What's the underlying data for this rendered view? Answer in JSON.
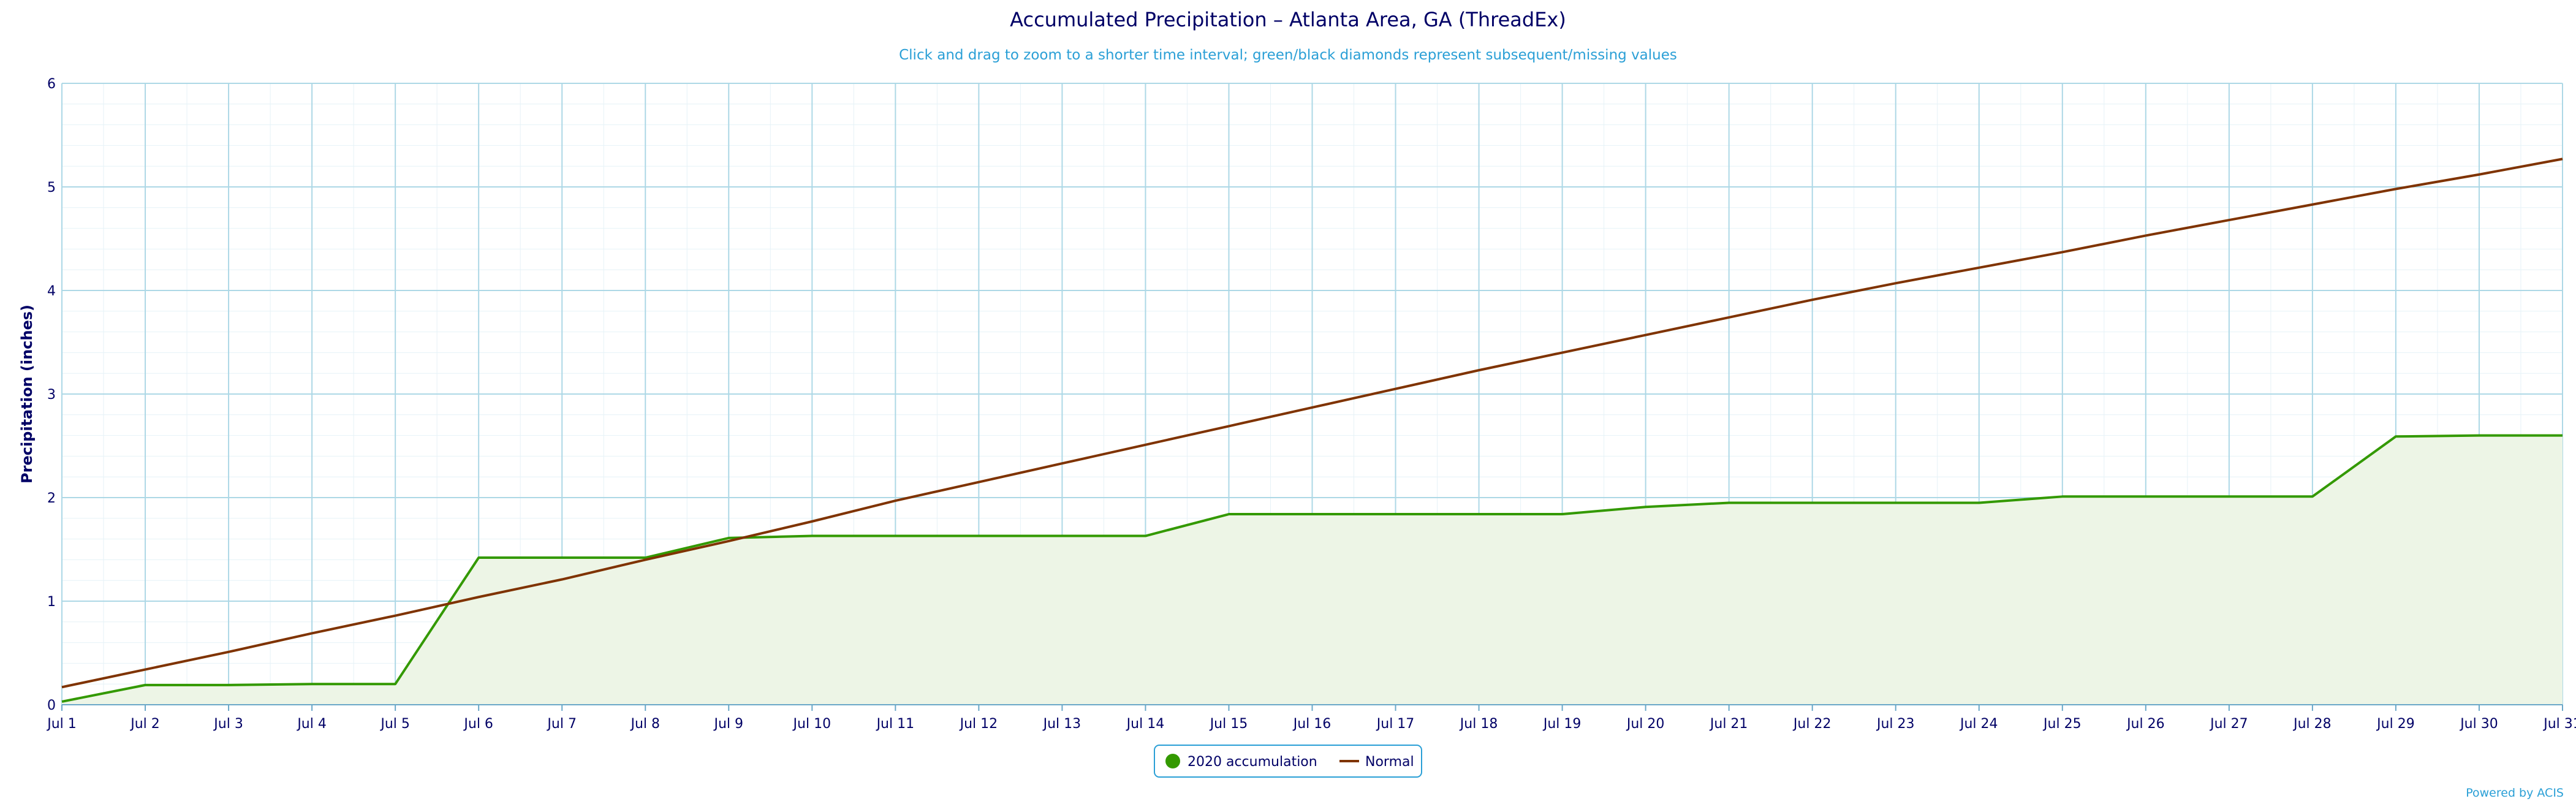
{
  "chart_data": {
    "type": "line",
    "title": "Accumulated Precipitation – Atlanta Area, GA (ThreadEx)",
    "subtitle": "Click and drag to zoom to a shorter time interval; green/black diamonds represent subsequent/missing values",
    "xlabel": "",
    "ylabel": "Precipitation (inches)",
    "ylim": [
      0,
      6
    ],
    "yticks": [
      "0",
      "1",
      "2",
      "3",
      "4",
      "5",
      "6"
    ],
    "grid": true,
    "legend_position": "bottom-center",
    "categories": [
      "Jul 1",
      "Jul 2",
      "Jul 3",
      "Jul 4",
      "Jul 5",
      "Jul 6",
      "Jul 7",
      "Jul 8",
      "Jul 9",
      "Jul 10",
      "Jul 11",
      "Jul 12",
      "Jul 13",
      "Jul 14",
      "Jul 15",
      "Jul 16",
      "Jul 17",
      "Jul 18",
      "Jul 19",
      "Jul 20",
      "Jul 21",
      "Jul 22",
      "Jul 23",
      "Jul 24",
      "Jul 25",
      "Jul 26",
      "Jul 27",
      "Jul 28",
      "Jul 29",
      "Jul 30",
      "Jul 31"
    ],
    "series": [
      {
        "name": "2020 accumulation",
        "color": "#339900",
        "fill": "#edf5e6",
        "area": true,
        "values": [
          0.03,
          0.19,
          0.19,
          0.2,
          0.2,
          1.42,
          1.42,
          1.42,
          1.61,
          1.63,
          1.63,
          1.63,
          1.63,
          1.63,
          1.84,
          1.84,
          1.84,
          1.84,
          1.84,
          1.91,
          1.95,
          1.95,
          1.95,
          1.95,
          2.01,
          2.01,
          2.01,
          2.01,
          2.59,
          2.6,
          2.6
        ]
      },
      {
        "name": "Normal",
        "color": "#7f3300",
        "area": false,
        "values": [
          0.17,
          0.34,
          0.51,
          0.69,
          0.86,
          1.04,
          1.21,
          1.4,
          1.58,
          1.77,
          1.97,
          2.15,
          2.33,
          2.51,
          2.69,
          2.87,
          3.05,
          3.23,
          3.4,
          3.57,
          3.74,
          3.91,
          4.07,
          4.22,
          4.37,
          4.53,
          4.68,
          4.83,
          4.98,
          5.12,
          5.27
        ]
      }
    ]
  },
  "grid_color": "#add8e6",
  "credit": "Powered by ACIS"
}
